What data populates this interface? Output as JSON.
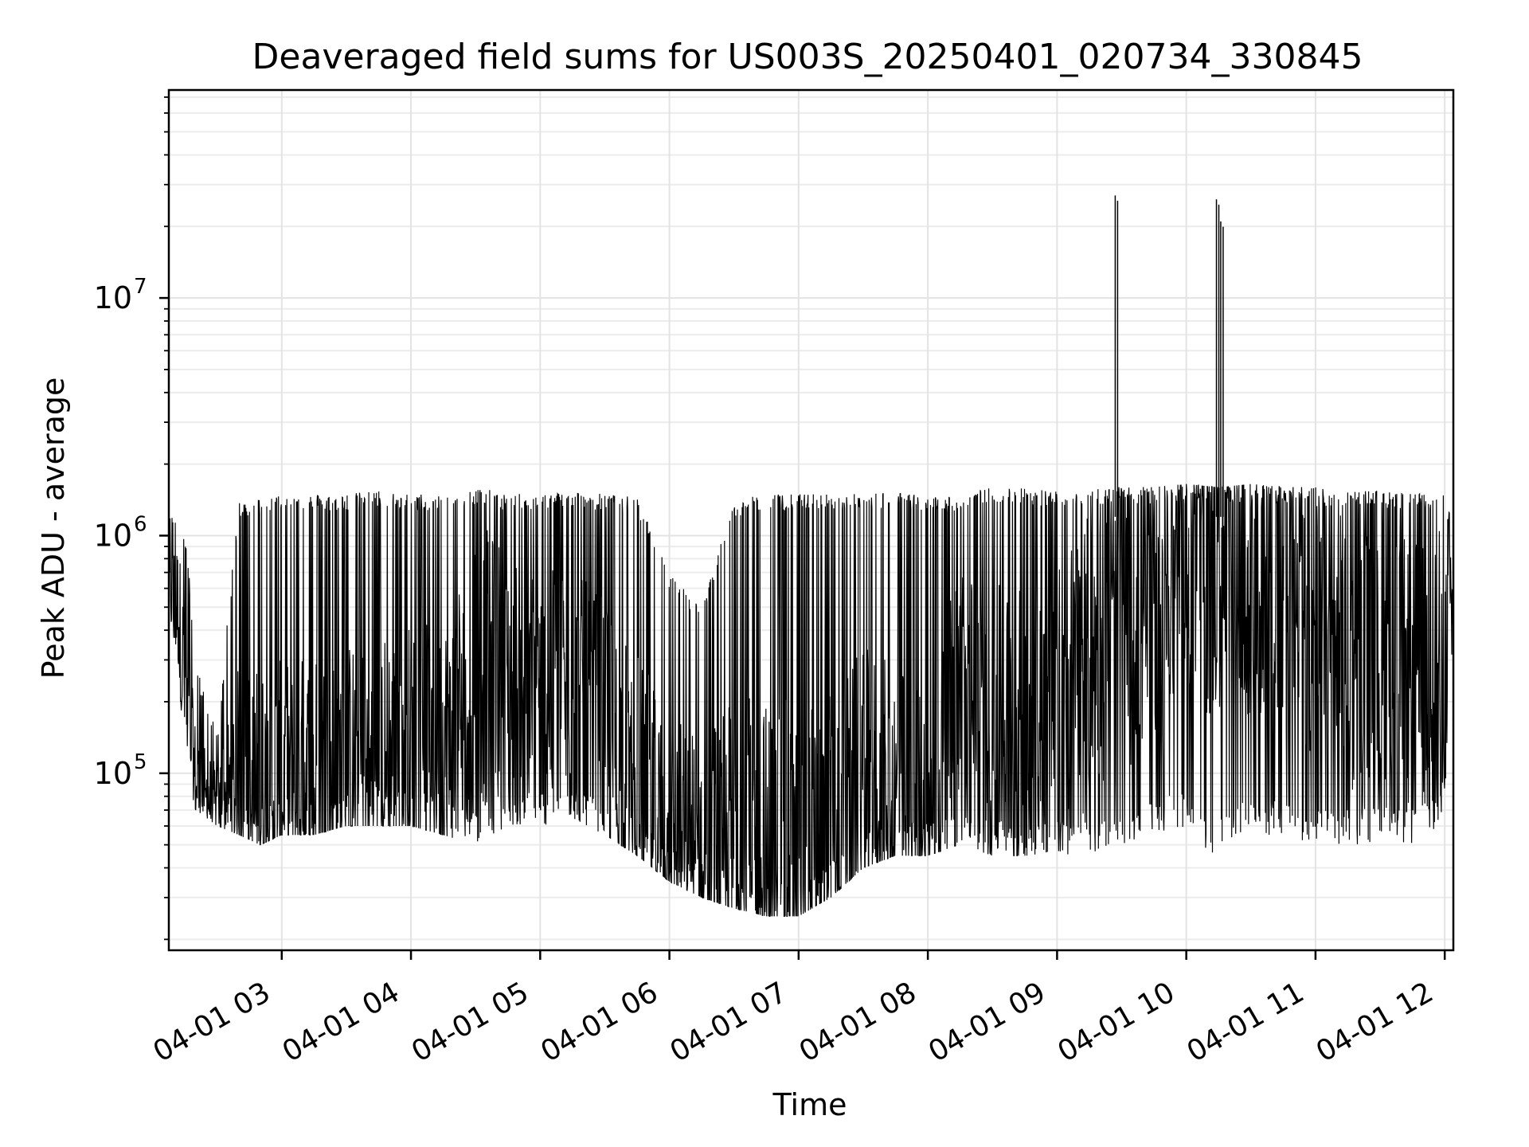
{
  "chart_data": {
    "type": "line",
    "title": "Deaveraged field sums for US003S_20250401_020734_330845",
    "xlabel": "Time",
    "ylabel": "Peak ADU - average",
    "y_scale": "log",
    "ylim": [
      18000,
      75000000
    ],
    "xlim": [
      "2025-04-01 02:07:34",
      "2025-04-01 12:04:00"
    ],
    "grid": "major and minor",
    "line_color": "#000000",
    "x_ticks": [
      {
        "t": "2025-04-01 03:00",
        "label": "04-01 03"
      },
      {
        "t": "2025-04-01 04:00",
        "label": "04-01 04"
      },
      {
        "t": "2025-04-01 05:00",
        "label": "04-01 05"
      },
      {
        "t": "2025-04-01 06:00",
        "label": "04-01 06"
      },
      {
        "t": "2025-04-01 07:00",
        "label": "04-01 07"
      },
      {
        "t": "2025-04-01 08:00",
        "label": "04-01 08"
      },
      {
        "t": "2025-04-01 09:00",
        "label": "04-01 09"
      },
      {
        "t": "2025-04-01 10:00",
        "label": "04-01 10"
      },
      {
        "t": "2025-04-01 11:00",
        "label": "04-01 11"
      },
      {
        "t": "2025-04-01 12:00",
        "label": "04-01 12"
      }
    ],
    "y_ticks": [
      {
        "value": 100000,
        "base": "10",
        "exp": "5"
      },
      {
        "value": 1000000,
        "base": "10",
        "exp": "6"
      },
      {
        "value": 10000000,
        "base": "10",
        "exp": "7"
      }
    ],
    "series": [
      {
        "x": [
          "2025-04-01 02:08",
          "2025-04-01 02:12",
          "2025-04-01 02:16",
          "2025-04-01 02:20",
          "2025-04-01 02:25",
          "2025-04-01 02:30",
          "2025-04-01 02:40",
          "2025-04-01 02:50",
          "2025-04-01 03:00",
          "2025-04-01 03:15",
          "2025-04-01 03:30",
          "2025-04-01 03:45",
          "2025-04-01 04:00",
          "2025-04-01 04:15",
          "2025-04-01 04:30",
          "2025-04-01 04:45",
          "2025-04-01 05:00",
          "2025-04-01 05:15",
          "2025-04-01 05:30",
          "2025-04-01 05:45",
          "2025-04-01 06:00",
          "2025-04-01 06:15",
          "2025-04-01 06:30",
          "2025-04-01 06:45",
          "2025-04-01 07:00",
          "2025-04-01 07:15",
          "2025-04-01 07:30",
          "2025-04-01 07:45",
          "2025-04-01 08:00",
          "2025-04-01 08:15",
          "2025-04-01 08:30",
          "2025-04-01 08:45",
          "2025-04-01 09:00",
          "2025-04-01 09:15",
          "2025-04-01 09:27",
          "2025-04-01 09:30",
          "2025-04-01 09:45",
          "2025-04-01 10:00",
          "2025-04-01 10:14",
          "2025-04-01 10:16",
          "2025-04-01 10:30",
          "2025-04-01 10:45",
          "2025-04-01 11:00",
          "2025-04-01 11:15",
          "2025-04-01 11:30",
          "2025-04-01 11:45",
          "2025-04-01 12:00",
          "2025-04-01 12:04"
        ],
        "high": [
          1200000,
          1300000,
          900000,
          300000,
          200000,
          150000,
          1400000,
          1450000,
          1500000,
          1500000,
          1500000,
          1550000,
          1500000,
          1500000,
          1600000,
          1500000,
          1500000,
          1550000,
          1500000,
          1450000,
          700000,
          500000,
          1400000,
          1500000,
          1500000,
          1500000,
          1500000,
          1550000,
          1450000,
          1500000,
          1600000,
          1600000,
          1550000,
          1600000,
          27000000,
          1600000,
          1600000,
          1650000,
          26000000,
          21000000,
          1650000,
          1600000,
          1600000,
          1550000,
          1550000,
          1500000,
          1500000,
          1100000
        ],
        "low": [
          400000,
          250000,
          100000,
          70000,
          65000,
          60000,
          55000,
          50000,
          55000,
          55000,
          60000,
          60000,
          60000,
          55000,
          50000,
          60000,
          60000,
          65000,
          55000,
          45000,
          35000,
          30000,
          27000,
          25000,
          25000,
          30000,
          40000,
          45000,
          45000,
          50000,
          45000,
          45000,
          45000,
          45000,
          50000,
          50000,
          55000,
          60000,
          40000,
          50000,
          55000,
          55000,
          50000,
          50000,
          50000,
          50000,
          60000,
          400000
        ],
        "mid": [
          600000,
          500000,
          180000,
          90000,
          80000,
          75000,
          80000,
          75000,
          80000,
          90000,
          100000,
          110000,
          120000,
          120000,
          300000,
          250000,
          200000,
          200000,
          150000,
          80000,
          55000,
          48000,
          45000,
          40000,
          40000,
          45000,
          80000,
          70000,
          60000,
          200000,
          150000,
          150000,
          200000,
          300000,
          350000,
          400000,
          500000,
          700000,
          700000,
          700000,
          600000,
          500000,
          400000,
          300000,
          250000,
          250000,
          300000,
          500000
        ]
      }
    ]
  }
}
